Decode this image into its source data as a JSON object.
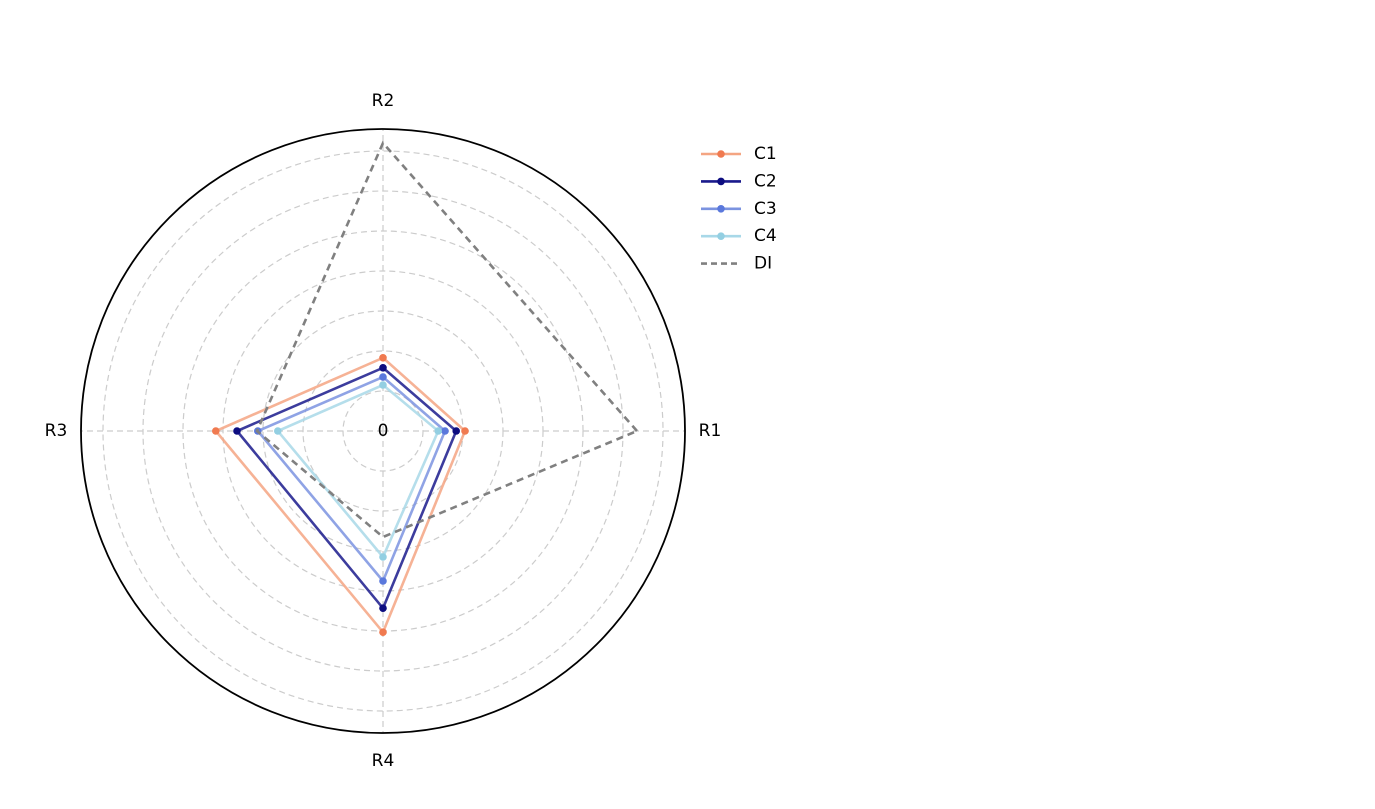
{
  "chart_data": {
    "type": "radar",
    "categories": [
      "R1",
      "R2",
      "R3",
      "R4"
    ],
    "rlim": [
      0,
      7.55
    ],
    "rticks": [
      0
    ],
    "rgrid": [
      1,
      2,
      3,
      4,
      5,
      6,
      7
    ],
    "grid": true,
    "legend": "right",
    "series": [
      {
        "name": "C1",
        "color": "#f4a582",
        "marker_color": "#f07a50",
        "values": [
          2.05,
          1.83,
          4.18,
          5.03
        ]
      },
      {
        "name": "C2",
        "color": "#1a1a8c",
        "marker_color": "#0d0d80",
        "values": [
          1.83,
          1.58,
          3.65,
          4.43
        ]
      },
      {
        "name": "C3",
        "color": "#7b93e0",
        "marker_color": "#5a78dc",
        "values": [
          1.55,
          1.35,
          3.13,
          3.75
        ]
      },
      {
        "name": "C4",
        "color": "#a8d8e8",
        "marker_color": "#93cfe2",
        "values": [
          1.38,
          1.15,
          2.63,
          3.15
        ]
      },
      {
        "name": "DI",
        "color": "#808080",
        "dashed": true,
        "values": [
          6.35,
          7.2,
          3.15,
          2.65
        ]
      }
    ]
  }
}
